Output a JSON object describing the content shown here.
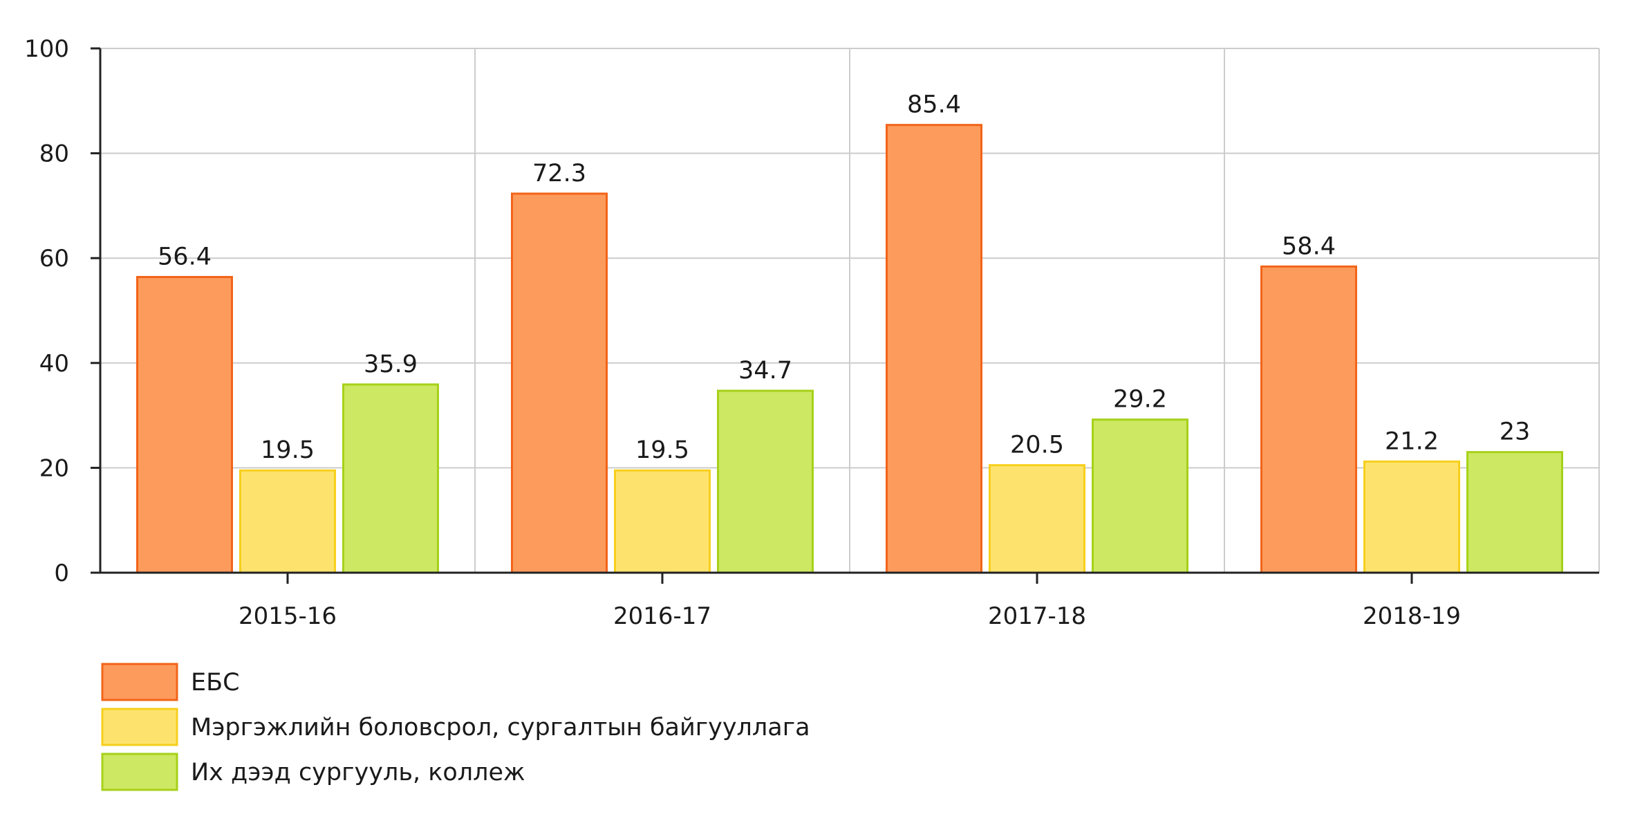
{
  "chart_data": {
    "type": "bar",
    "categories": [
      "2015-16",
      "2016-17",
      "2017-18",
      "2018-19"
    ],
    "series": [
      {
        "name": "ЕБС",
        "values": [
          56.4,
          72.3,
          85.4,
          58.4
        ],
        "fill": "#fd9b5c",
        "stroke": "#f26419"
      },
      {
        "name": "Мэргэжлийн боловсрол, сургалтын байгууллага",
        "values": [
          19.5,
          19.5,
          20.5,
          21.2
        ],
        "fill": "#fde36e",
        "stroke": "#f7cf1c"
      },
      {
        "name": "Их дээд сургууль, коллеж",
        "values": [
          35.9,
          34.7,
          29.2,
          23
        ],
        "fill": "#cde862",
        "stroke": "#a6d11a"
      }
    ],
    "yticks": [
      "0",
      "20",
      "40",
      "60",
      "80",
      "100"
    ],
    "ylim": [
      0,
      100
    ],
    "grid": true,
    "legend": "bottom-left"
  }
}
